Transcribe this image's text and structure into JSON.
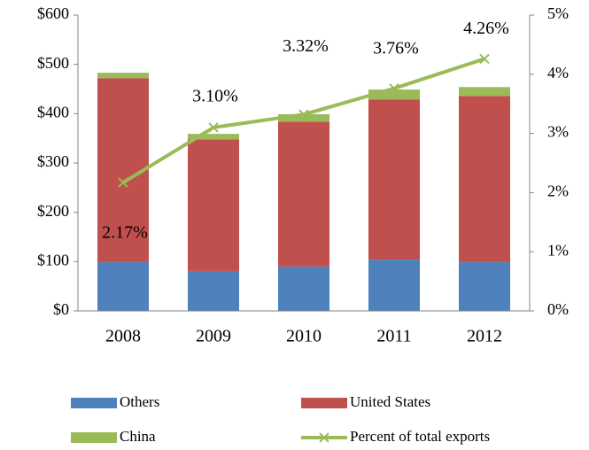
{
  "chart_data": {
    "type": "bar",
    "stacked": true,
    "categories": [
      "2008",
      "2009",
      "2010",
      "2011",
      "2012"
    ],
    "series": [
      {
        "name": "Others",
        "color": "#4f81bd",
        "values": [
          99,
          81,
          90,
          104,
          99
        ]
      },
      {
        "name": "United States",
        "color": "#c0504d",
        "values": [
          373,
          267,
          294,
          325,
          337
        ]
      },
      {
        "name": "China",
        "color": "#9bbb59",
        "values": [
          11,
          11,
          15,
          20,
          18
        ]
      },
      {
        "name": "Percent of total exports",
        "type": "line",
        "axis": "y2",
        "color": "#9bbb59",
        "marker": "x",
        "values": [
          2.17,
          3.1,
          3.32,
          3.76,
          4.26
        ],
        "value_labels": [
          "2.17%",
          "3.10%",
          "3.32%",
          "3.76%",
          "4.26%"
        ]
      }
    ],
    "ylim": [
      0,
      600
    ],
    "yticks": [
      {
        "value": 0,
        "label": "$0"
      },
      {
        "value": 100,
        "label": "$100"
      },
      {
        "value": 200,
        "label": "$200"
      },
      {
        "value": 300,
        "label": "$300"
      },
      {
        "value": 400,
        "label": "$400"
      },
      {
        "value": 500,
        "label": "$500"
      },
      {
        "value": 600,
        "label": "$600"
      }
    ],
    "y2lim": [
      0,
      5
    ],
    "y2ticks": [
      {
        "value": 0,
        "label": "0%"
      },
      {
        "value": 1,
        "label": "1%"
      },
      {
        "value": 2,
        "label": "2%"
      },
      {
        "value": 3,
        "label": "3%"
      },
      {
        "value": 4,
        "label": "4%"
      },
      {
        "value": 5,
        "label": "5%"
      }
    ],
    "grid": false,
    "legend": "bottom"
  }
}
